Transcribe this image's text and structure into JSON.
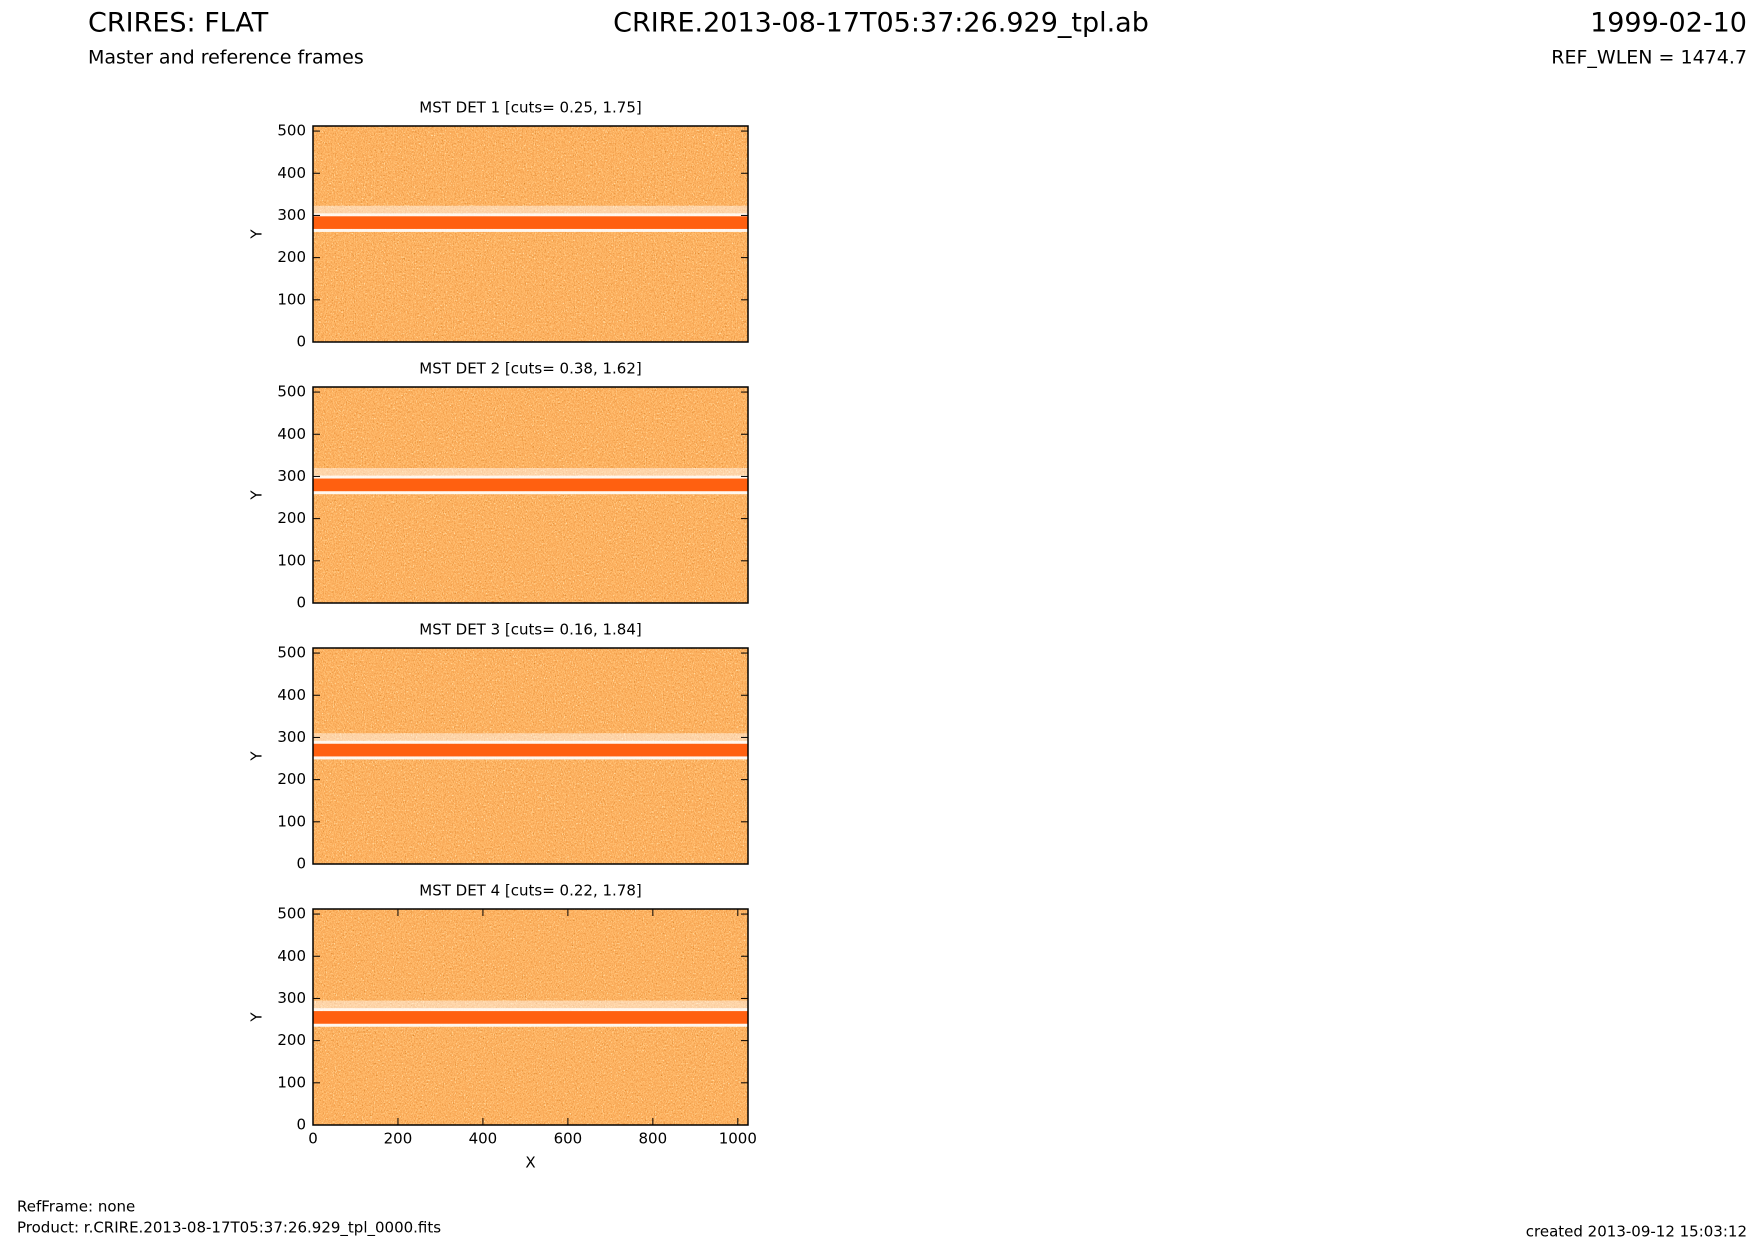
{
  "header": {
    "title": "CRIRES: FLAT",
    "subtitle": "Master and reference frames",
    "filename": "CRIRE.2013-08-17T05:37:26.929_tpl.ab",
    "date": "1999-02-10",
    "ref_wlen": "REF_WLEN = 1474.7"
  },
  "footer": {
    "refframe": "RefFrame: none",
    "product": "Product: r.CRIRE.2013-08-17T05:37:26.929_tpl_0000.fits",
    "created": "created 2013-09-12 15:03:12"
  },
  "chart_data": [
    {
      "type": "image",
      "title": "MST DET 1 [cuts= 0.25, 1.75]",
      "ylabel": "Y",
      "xlim": [
        0,
        1024
      ],
      "ylim": [
        0,
        512
      ],
      "yticks": [
        0,
        100,
        200,
        300,
        400,
        500
      ]
    },
    {
      "type": "image",
      "title": "MST DET 2 [cuts= 0.38, 1.62]",
      "ylabel": "Y",
      "xlim": [
        0,
        1024
      ],
      "ylim": [
        0,
        512
      ],
      "yticks": [
        0,
        100,
        200,
        300,
        400,
        500
      ]
    },
    {
      "type": "image",
      "title": "MST DET 3 [cuts= 0.16, 1.84]",
      "ylabel": "Y",
      "xlim": [
        0,
        1024
      ],
      "ylim": [
        0,
        512
      ],
      "yticks": [
        0,
        100,
        200,
        300,
        400,
        500
      ]
    },
    {
      "type": "image",
      "title": "MST DET 4 [cuts= 0.22, 1.78]",
      "ylabel": "Y",
      "xlabel": "X",
      "xlim": [
        0,
        1024
      ],
      "ylim": [
        0,
        512
      ],
      "yticks": [
        0,
        100,
        200,
        300,
        400,
        500
      ],
      "xticks": [
        0,
        200,
        400,
        600,
        800,
        1000
      ]
    }
  ]
}
